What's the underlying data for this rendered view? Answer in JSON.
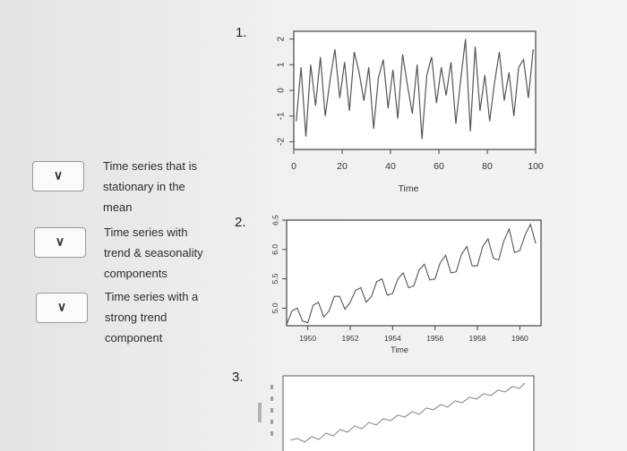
{
  "options": [
    {
      "label_lines": [
        "Time series that is",
        "stationary in the",
        "mean"
      ]
    },
    {
      "label_lines": [
        "Time series with",
        "trend & seasonality",
        "components"
      ]
    },
    {
      "label_lines": [
        "Time series with a",
        "strong trend",
        "component"
      ]
    }
  ],
  "dropdown_icon": "chevron-down-icon",
  "plots": [
    {
      "number": "1.",
      "xlabel": "Time",
      "x_ticks": [
        "0",
        "20",
        "40",
        "60",
        "80",
        "100"
      ],
      "y_ticks": [
        "-2",
        "-1",
        "0",
        "1",
        "2"
      ]
    },
    {
      "number": "2.",
      "xlabel": "Time",
      "x_ticks": [
        "1950",
        "1952",
        "1954",
        "1956",
        "1958",
        "1960"
      ],
      "y_ticks": [
        "5.0",
        "5.5",
        "6.0",
        "6.5"
      ]
    },
    {
      "number": "3."
    }
  ],
  "chart_data": [
    {
      "type": "line",
      "xlabel": "Time",
      "ylabel": "",
      "xlim": [
        0,
        100
      ],
      "ylim": [
        -2.3,
        2.3
      ],
      "x": [
        1,
        3,
        5,
        7,
        9,
        11,
        13,
        15,
        17,
        19,
        21,
        23,
        25,
        27,
        29,
        31,
        33,
        35,
        37,
        39,
        41,
        43,
        45,
        47,
        49,
        51,
        53,
        55,
        57,
        59,
        61,
        63,
        65,
        67,
        69,
        71,
        73,
        75,
        77,
        79,
        81,
        83,
        85,
        87,
        89,
        91,
        93,
        95,
        97,
        99
      ],
      "values": [
        -1.2,
        0.9,
        -1.8,
        1.0,
        -0.6,
        1.3,
        -1.0,
        0.4,
        1.6,
        -0.3,
        1.1,
        -0.8,
        1.5,
        0.7,
        -0.4,
        0.9,
        -1.5,
        0.5,
        1.2,
        -0.7,
        0.8,
        -1.1,
        1.4,
        0.2,
        -0.9,
        1.0,
        -1.9,
        0.6,
        1.3,
        -0.5,
        0.9,
        -0.2,
        1.1,
        -1.3,
        0.4,
        2.0,
        -1.6,
        1.7,
        -0.8,
        0.6,
        -1.2,
        0.3,
        1.5,
        -0.4,
        0.7,
        -1.0,
        0.9,
        1.2,
        -0.3,
        1.6
      ]
    },
    {
      "type": "line",
      "xlabel": "Time",
      "ylabel": "",
      "xlim": [
        1949,
        1961
      ],
      "ylim": [
        4.7,
        6.5
      ],
      "x": [
        1949.0,
        1949.25,
        1949.5,
        1949.75,
        1950.0,
        1950.25,
        1950.5,
        1950.75,
        1951.0,
        1951.25,
        1951.5,
        1951.75,
        1952.0,
        1952.25,
        1952.5,
        1952.75,
        1953.0,
        1953.25,
        1953.5,
        1953.75,
        1954.0,
        1954.25,
        1954.5,
        1954.75,
        1955.0,
        1955.25,
        1955.5,
        1955.75,
        1956.0,
        1956.25,
        1956.5,
        1956.75,
        1957.0,
        1957.25,
        1957.5,
        1957.75,
        1958.0,
        1958.25,
        1958.5,
        1958.75,
        1959.0,
        1959.25,
        1959.5,
        1959.75,
        1960.0,
        1960.25,
        1960.5,
        1960.75
      ],
      "values": [
        4.72,
        4.95,
        5.0,
        4.78,
        4.75,
        5.05,
        5.1,
        4.85,
        4.95,
        5.2,
        5.2,
        4.98,
        5.1,
        5.3,
        5.35,
        5.1,
        5.2,
        5.45,
        5.5,
        5.22,
        5.25,
        5.5,
        5.6,
        5.35,
        5.38,
        5.65,
        5.75,
        5.48,
        5.5,
        5.78,
        5.9,
        5.6,
        5.62,
        5.92,
        6.05,
        5.72,
        5.72,
        6.05,
        6.18,
        5.85,
        5.82,
        6.15,
        6.35,
        5.95,
        5.98,
        6.25,
        6.43,
        6.1
      ]
    }
  ]
}
